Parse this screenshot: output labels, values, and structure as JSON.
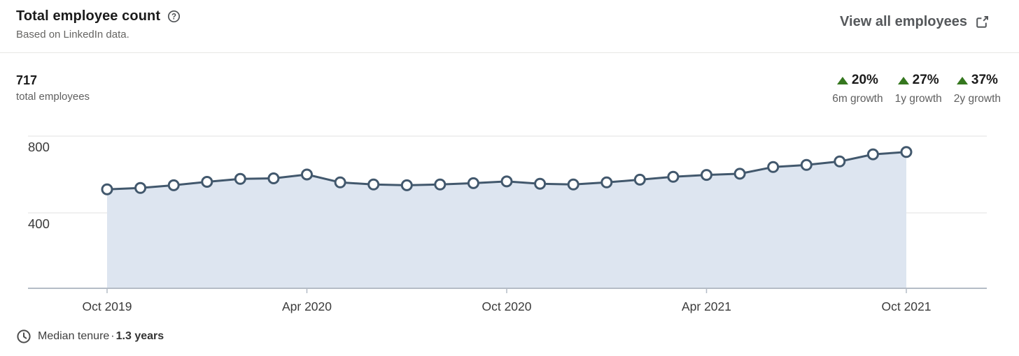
{
  "header": {
    "title": "Total employee count",
    "help_glyph": "?",
    "subtitle": "Based on LinkedIn data.",
    "view_all_label": "View all employees"
  },
  "summary": {
    "value": "717",
    "label": "total employees"
  },
  "growth": [
    {
      "percent": "20%",
      "label": "6m growth"
    },
    {
      "percent": "27%",
      "label": "1y growth"
    },
    {
      "percent": "37%",
      "label": "2y growth"
    }
  ],
  "footer": {
    "label": "Median tenure",
    "separator": "·",
    "value": "1.3 years"
  },
  "theme": {
    "growth_green": "#35771f",
    "text_dark": "#1b1b1b",
    "text_gray": "#5f5f5f"
  },
  "chart_data": {
    "type": "area",
    "title": "Total employee count",
    "xlabel": "",
    "ylabel": "",
    "ylim": [
      0,
      800
    ],
    "grid": true,
    "x": [
      "Oct 2019",
      "Nov 2019",
      "Dec 2019",
      "Jan 2020",
      "Feb 2020",
      "Mar 2020",
      "Apr 2020",
      "May 2020",
      "Jun 2020",
      "Jul 2020",
      "Aug 2020",
      "Sep 2020",
      "Oct 2020",
      "Nov 2020",
      "Dec 2020",
      "Jan 2021",
      "Feb 2021",
      "Mar 2021",
      "Apr 2021",
      "May 2021",
      "Jun 2021",
      "Jul 2021",
      "Aug 2021",
      "Sep 2021",
      "Oct 2021"
    ],
    "values": [
      523,
      530,
      544,
      562,
      577,
      580,
      600,
      559,
      548,
      544,
      548,
      555,
      564,
      552,
      548,
      559,
      573,
      588,
      598,
      604,
      639,
      650,
      668,
      705,
      717
    ],
    "x_ticks": [
      {
        "index": 0,
        "label": "Oct 2019"
      },
      {
        "index": 6,
        "label": "Apr 2020"
      },
      {
        "index": 12,
        "label": "Oct 2020"
      },
      {
        "index": 18,
        "label": "Apr 2021"
      },
      {
        "index": 24,
        "label": "Oct 2021"
      }
    ],
    "y_gridlines": [
      800,
      400
    ],
    "colors": {
      "line": "#42586d",
      "marker_fill": "#ffffff",
      "area": "#dde5f0",
      "grid": "#e2e2e2",
      "axis": "#b4bcc6",
      "label": "#3b3b3b"
    }
  }
}
